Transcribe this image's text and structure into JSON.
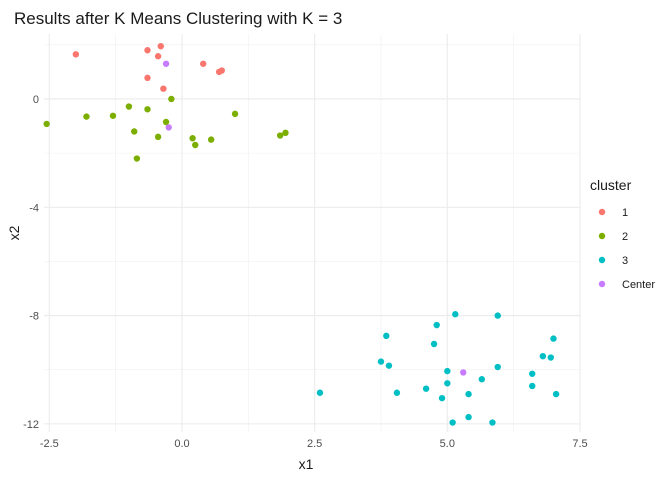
{
  "chart_data": {
    "type": "scatter",
    "title": "Results after K Means Clustering with K = 3",
    "xlabel": "x1",
    "ylabel": "x2",
    "xlim": [
      -2.6,
      7.5
    ],
    "ylim": [
      -12.3,
      2.4
    ],
    "xticks": [
      -2.5,
      0,
      2.5,
      5,
      7.5
    ],
    "xtick_labels": [
      "-2.5",
      "0.0",
      "2.5",
      "5.0",
      "7.5"
    ],
    "yticks": [
      0,
      -4,
      -8,
      -12
    ],
    "ytick_labels": [
      "0",
      "-4",
      "-8",
      "-12"
    ],
    "grid": true,
    "legend": {
      "title": "cluster",
      "position": "right"
    },
    "series": [
      {
        "name": "1",
        "color": "#F8766D",
        "points": [
          [
            -2.0,
            1.65
          ],
          [
            -0.65,
            1.8
          ],
          [
            -0.45,
            1.58
          ],
          [
            -0.4,
            1.95
          ],
          [
            -0.65,
            0.78
          ],
          [
            -0.35,
            0.38
          ],
          [
            0.4,
            1.3
          ],
          [
            0.7,
            1.0
          ],
          [
            0.75,
            1.05
          ]
        ]
      },
      {
        "name": "2",
        "color": "#7CAE00",
        "points": [
          [
            -2.55,
            -0.92
          ],
          [
            -1.8,
            -0.65
          ],
          [
            -1.3,
            -0.62
          ],
          [
            -1.0,
            -0.28
          ],
          [
            -0.65,
            -0.38
          ],
          [
            -0.3,
            -0.85
          ],
          [
            -0.2,
            0.0
          ],
          [
            -0.9,
            -1.2
          ],
          [
            -0.45,
            -1.4
          ],
          [
            -0.85,
            -2.2
          ],
          [
            0.2,
            -1.45
          ],
          [
            0.25,
            -1.7
          ],
          [
            0.55,
            -1.5
          ],
          [
            1.0,
            -0.55
          ],
          [
            1.85,
            -1.35
          ],
          [
            1.95,
            -1.25
          ]
        ]
      },
      {
        "name": "3",
        "color": "#00BFC4",
        "points": [
          [
            2.6,
            -10.85
          ],
          [
            3.75,
            -9.7
          ],
          [
            3.85,
            -8.75
          ],
          [
            3.9,
            -9.85
          ],
          [
            4.05,
            -10.85
          ],
          [
            4.6,
            -10.7
          ],
          [
            4.75,
            -9.05
          ],
          [
            4.8,
            -8.35
          ],
          [
            4.9,
            -11.05
          ],
          [
            5.0,
            -10.05
          ],
          [
            5.0,
            -10.5
          ],
          [
            5.1,
            -11.95
          ],
          [
            5.15,
            -7.95
          ],
          [
            5.4,
            -10.9
          ],
          [
            5.4,
            -11.75
          ],
          [
            5.65,
            -10.35
          ],
          [
            5.85,
            -11.95
          ],
          [
            5.95,
            -8.0
          ],
          [
            5.95,
            -9.9
          ],
          [
            6.6,
            -10.15
          ],
          [
            6.6,
            -10.6
          ],
          [
            6.8,
            -9.5
          ],
          [
            6.95,
            -9.55
          ],
          [
            7.0,
            -8.85
          ],
          [
            7.05,
            -10.9
          ]
        ]
      },
      {
        "name": "Center",
        "color": "#C77CFF",
        "points": [
          [
            -0.3,
            1.3
          ],
          [
            -0.25,
            -1.05
          ],
          [
            5.3,
            -10.1
          ]
        ]
      }
    ]
  }
}
